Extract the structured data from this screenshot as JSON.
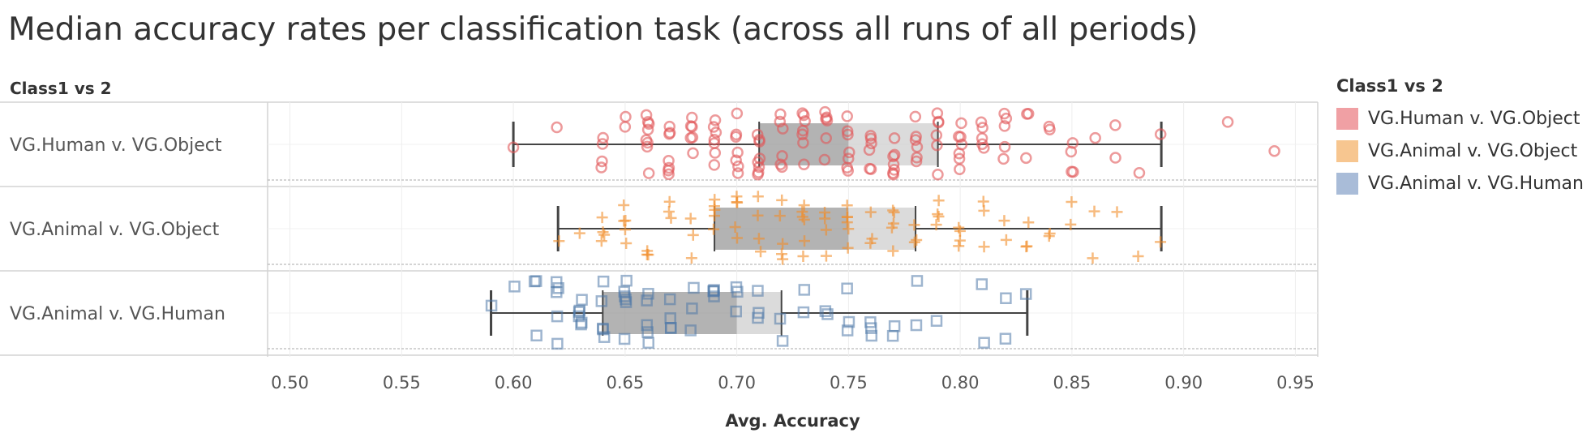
{
  "title": "Median accuracy rates per classification task (across all runs of all periods)",
  "row_header": "Class1 vs 2",
  "legend": {
    "title": "Class1 vs 2",
    "items": [
      {
        "label": "VG.Human v. VG.Object",
        "color": "#f0a0a4"
      },
      {
        "label": "VG.Animal v. VG.Object",
        "color": "#f7c690"
      },
      {
        "label": "VG.Animal v. VG.Human",
        "color": "#a9bcd8"
      }
    ]
  },
  "chart_data": {
    "type": "scatter",
    "title": "Median accuracy rates per classification task (across all runs of all periods)",
    "xlabel": "Avg. Accuracy",
    "xlim": [
      0.49,
      0.96
    ],
    "xticks": [
      "0.50",
      "0.55",
      "0.60",
      "0.65",
      "0.70",
      "0.75",
      "0.80",
      "0.85",
      "0.90",
      "0.95"
    ],
    "xtick_values": [
      0.5,
      0.55,
      0.6,
      0.65,
      0.7,
      0.75,
      0.8,
      0.85,
      0.9,
      0.95
    ],
    "grid": true,
    "legend_position": "right",
    "series": [
      {
        "name": "VG.Human v. VG.Object",
        "marker": "circle",
        "color": "#e15759",
        "x": [
          0.6,
          0.62,
          0.64,
          0.64,
          0.64,
          0.64,
          0.65,
          0.65,
          0.66,
          0.66,
          0.66,
          0.66,
          0.66,
          0.66,
          0.66,
          0.66,
          0.67,
          0.67,
          0.67,
          0.67,
          0.67,
          0.67,
          0.67,
          0.68,
          0.68,
          0.68,
          0.68,
          0.68,
          0.68,
          0.69,
          0.69,
          0.69,
          0.69,
          0.69,
          0.69,
          0.69,
          0.7,
          0.7,
          0.7,
          0.7,
          0.7,
          0.7,
          0.7,
          0.71,
          0.71,
          0.71,
          0.71,
          0.71,
          0.71,
          0.71,
          0.71,
          0.72,
          0.72,
          0.72,
          0.72,
          0.72,
          0.72,
          0.73,
          0.73,
          0.73,
          0.73,
          0.73,
          0.73,
          0.73,
          0.74,
          0.74,
          0.74,
          0.74,
          0.74,
          0.74,
          0.75,
          0.75,
          0.75,
          0.75,
          0.75,
          0.75,
          0.75,
          0.76,
          0.76,
          0.76,
          0.76,
          0.76,
          0.76,
          0.77,
          0.77,
          0.77,
          0.77,
          0.77,
          0.77,
          0.77,
          0.78,
          0.78,
          0.78,
          0.78,
          0.78,
          0.78,
          0.79,
          0.79,
          0.79,
          0.79,
          0.79,
          0.79,
          0.8,
          0.8,
          0.8,
          0.8,
          0.8,
          0.8,
          0.8,
          0.81,
          0.81,
          0.81,
          0.81,
          0.81,
          0.82,
          0.82,
          0.82,
          0.82,
          0.82,
          0.83,
          0.83,
          0.83,
          0.84,
          0.84,
          0.85,
          0.85,
          0.85,
          0.85,
          0.86,
          0.87,
          0.87,
          0.88,
          0.89,
          0.92,
          0.94
        ],
        "box": {
          "whisker_low": 0.6,
          "q1": 0.71,
          "median": 0.75,
          "q3": 0.79,
          "whisker_high": 0.89
        }
      },
      {
        "name": "VG.Animal v. VG.Object",
        "marker": "plus",
        "color": "#f28e2b",
        "x": [
          0.62,
          0.63,
          0.64,
          0.64,
          0.64,
          0.64,
          0.65,
          0.65,
          0.65,
          0.65,
          0.65,
          0.66,
          0.66,
          0.66,
          0.67,
          0.67,
          0.67,
          0.68,
          0.68,
          0.68,
          0.69,
          0.69,
          0.69,
          0.69,
          0.69,
          0.7,
          0.7,
          0.7,
          0.7,
          0.7,
          0.71,
          0.71,
          0.71,
          0.71,
          0.72,
          0.72,
          0.72,
          0.72,
          0.72,
          0.73,
          0.73,
          0.73,
          0.73,
          0.73,
          0.73,
          0.74,
          0.74,
          0.74,
          0.74,
          0.75,
          0.75,
          0.75,
          0.75,
          0.75,
          0.75,
          0.76,
          0.76,
          0.76,
          0.77,
          0.77,
          0.77,
          0.77,
          0.77,
          0.78,
          0.78,
          0.78,
          0.79,
          0.79,
          0.79,
          0.79,
          0.8,
          0.8,
          0.8,
          0.8,
          0.81,
          0.81,
          0.81,
          0.82,
          0.82,
          0.83,
          0.83,
          0.83,
          0.84,
          0.84,
          0.85,
          0.85,
          0.86,
          0.86,
          0.87,
          0.88,
          0.89
        ],
        "box": {
          "whisker_low": 0.62,
          "q1": 0.69,
          "median": 0.75,
          "q3": 0.78,
          "whisker_high": 0.89
        }
      },
      {
        "name": "VG.Animal v. VG.Human",
        "marker": "square",
        "color": "#4e79a7",
        "x": [
          0.59,
          0.6,
          0.61,
          0.61,
          0.61,
          0.62,
          0.62,
          0.62,
          0.62,
          0.62,
          0.63,
          0.63,
          0.63,
          0.63,
          0.63,
          0.63,
          0.64,
          0.64,
          0.64,
          0.64,
          0.64,
          0.65,
          0.65,
          0.65,
          0.65,
          0.65,
          0.65,
          0.66,
          0.66,
          0.66,
          0.66,
          0.66,
          0.67,
          0.67,
          0.67,
          0.67,
          0.68,
          0.68,
          0.68,
          0.69,
          0.69,
          0.69,
          0.69,
          0.7,
          0.7,
          0.7,
          0.71,
          0.71,
          0.71,
          0.72,
          0.72,
          0.73,
          0.73,
          0.74,
          0.74,
          0.75,
          0.75,
          0.75,
          0.76,
          0.76,
          0.76,
          0.77,
          0.77,
          0.78,
          0.78,
          0.79,
          0.81,
          0.81,
          0.82,
          0.82,
          0.83
        ],
        "box": {
          "whisker_low": 0.59,
          "q1": 0.64,
          "median": 0.7,
          "q3": 0.72,
          "whisker_high": 0.83
        }
      }
    ]
  }
}
